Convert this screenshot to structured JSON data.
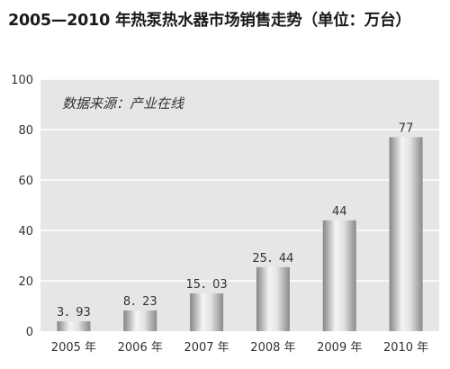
{
  "chart_data": {
    "type": "bar",
    "title": "2005—2010 年热泵热水器市场销售走势（单位：万台）",
    "annotation": "数据来源：产业在线",
    "categories": [
      "2005 年",
      "2006 年",
      "2007 年",
      "2008 年",
      "2009 年",
      "2010 年"
    ],
    "values": [
      3.93,
      8.23,
      15.03,
      25.44,
      44,
      77
    ],
    "data_labels": [
      "3．93",
      "8．23",
      "15．03",
      "25．44",
      "44",
      "77"
    ],
    "xlabel": "",
    "ylabel": "",
    "ylim": [
      0,
      100
    ],
    "yticks": [
      0,
      20,
      40,
      60,
      80,
      100
    ],
    "grid": true,
    "colors": {
      "plot_background": "#e6e6e6",
      "gridline": "#ffffff",
      "bar_light": "#f2f2f2",
      "bar_dark": "#9b9b9b",
      "text": "#333333"
    }
  }
}
